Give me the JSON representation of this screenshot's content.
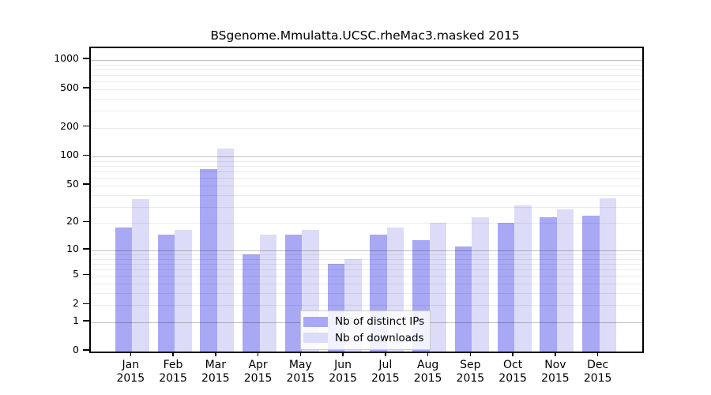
{
  "chart_data": {
    "type": "bar",
    "title": "BSgenome.Mmulatta.UCSC.rheMac3.masked 2015",
    "categories": [
      "Jan",
      "Feb",
      "Mar",
      "Apr",
      "May",
      "Jun",
      "Jul",
      "Aug",
      "Sep",
      "Oct",
      "Nov",
      "Dec"
    ],
    "category_year": "2015",
    "series": [
      {
        "name": "Nb of distinct IPs",
        "color": "#a8a8f5",
        "values": [
          18,
          15,
          75,
          9,
          15,
          7,
          15,
          13,
          11,
          20,
          23,
          24
        ]
      },
      {
        "name": "Nb of downloads",
        "color": "#dcdcf8",
        "values": [
          36,
          17,
          123,
          15,
          17,
          8,
          18,
          20,
          23,
          31,
          28,
          37
        ]
      }
    ],
    "yscale": "log10(value+1)",
    "yticks": [
      0,
      1,
      2,
      5,
      10,
      20,
      50,
      100,
      200,
      500,
      1000
    ],
    "ylim": [
      0,
      1325
    ],
    "xlabel": "",
    "ylabel": "",
    "grid": true,
    "grid_minor_at": "2-9 per decade",
    "legend_position": "inside-bottom-center"
  }
}
